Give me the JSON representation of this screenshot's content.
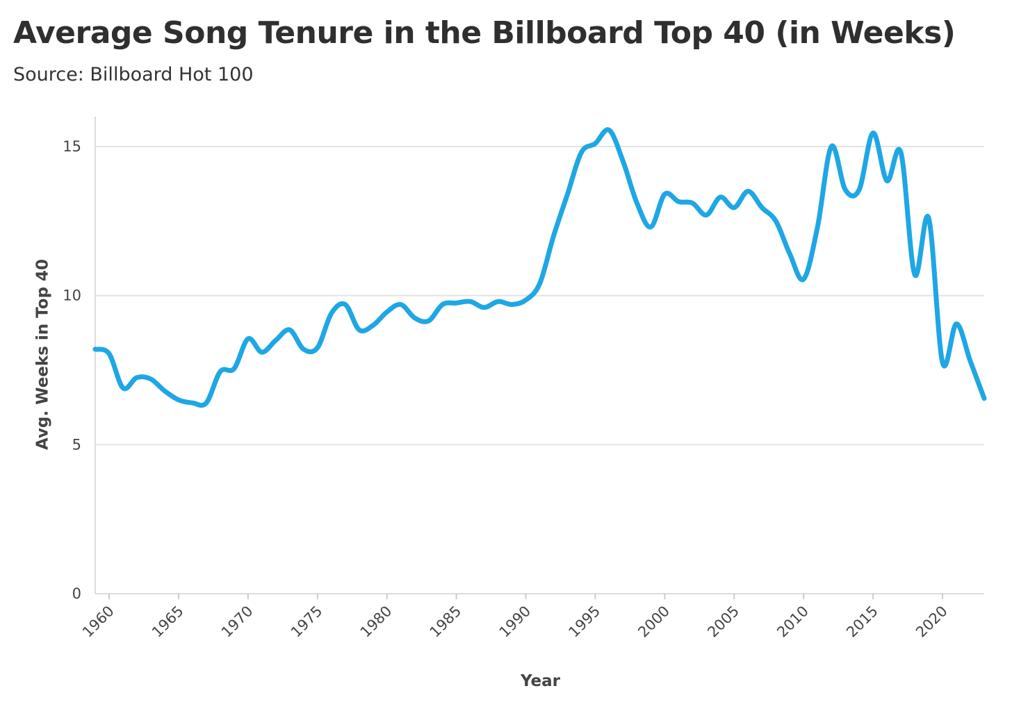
{
  "title": "Average Song Tenure in the Billboard Top 40 (in Weeks)",
  "subtitle": "Source: Billboard Hot 100",
  "chart_data": {
    "type": "line",
    "title": "Average Song Tenure in the Billboard Top 40 (in Weeks)",
    "subtitle": "Source: Billboard Hot 100",
    "xlabel": "Year",
    "ylabel": "Avg. Weeks in Top 40",
    "xlim": [
      1959,
      2023
    ],
    "ylim": [
      0,
      16
    ],
    "x_ticks": [
      1960,
      1965,
      1970,
      1975,
      1980,
      1985,
      1990,
      1995,
      2000,
      2005,
      2010,
      2015,
      2020
    ],
    "x_tick_labels": [
      "1960",
      "1965",
      "1970",
      "1975",
      "1980",
      "1985",
      "1990",
      "1995",
      "2000",
      "2005",
      "2010",
      "2015",
      "2020"
    ],
    "y_ticks": [
      0,
      5,
      10,
      15
    ],
    "y_tick_labels": [
      "0",
      "5",
      "10",
      "15"
    ],
    "grid": true,
    "line_color": "#1ea7e4",
    "series": [
      {
        "x": [
          1959,
          1960,
          1961,
          1962,
          1963,
          1964,
          1965,
          1966,
          1967,
          1968,
          1969,
          1970,
          1971,
          1972,
          1973,
          1974,
          1975,
          1976,
          1977,
          1978,
          1979,
          1980,
          1981,
          1982,
          1983,
          1984,
          1985,
          1986,
          1987,
          1988,
          1989,
          1990,
          1991,
          1992,
          1993,
          1994,
          1995,
          1996,
          1997,
          1998,
          1999,
          2000,
          2001,
          2002,
          2003,
          2004,
          2005,
          2006,
          2007,
          2008,
          2009,
          2010,
          2011,
          2012,
          2013,
          2014,
          2015,
          2016,
          2017,
          2018,
          2019,
          2020,
          2021,
          2022,
          2023
        ],
        "y": [
          8.2,
          8.05,
          6.9,
          7.25,
          7.2,
          6.8,
          6.5,
          6.4,
          6.4,
          7.45,
          7.55,
          8.55,
          8.1,
          8.5,
          8.85,
          8.2,
          8.25,
          9.4,
          9.7,
          8.85,
          9.0,
          9.45,
          9.7,
          9.25,
          9.15,
          9.7,
          9.75,
          9.8,
          9.6,
          9.8,
          9.7,
          9.85,
          10.4,
          12.0,
          13.4,
          14.8,
          15.1,
          15.55,
          14.5,
          13.1,
          12.3,
          13.4,
          13.15,
          13.1,
          12.7,
          13.3,
          12.95,
          13.5,
          12.95,
          12.5,
          11.4,
          10.55,
          12.3,
          15.0,
          13.55,
          13.55,
          15.45,
          13.85,
          14.8,
          10.7,
          12.6,
          7.75,
          9.05,
          7.8,
          6.55
        ]
      }
    ]
  }
}
